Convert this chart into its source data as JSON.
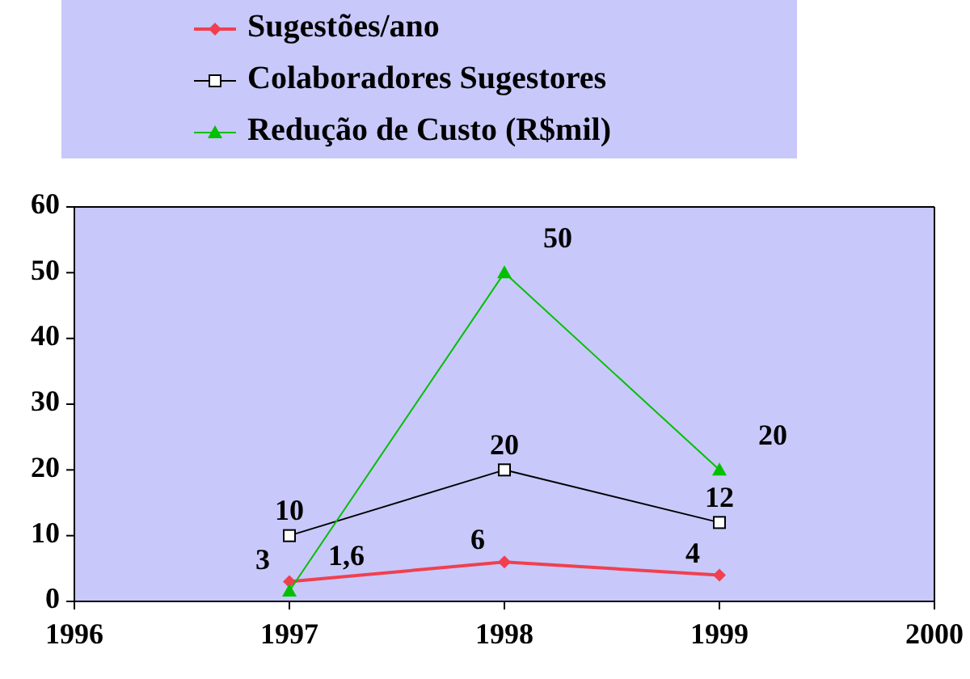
{
  "chart_data": {
    "type": "line",
    "x": [
      1997,
      1998,
      1999
    ],
    "xlim": [
      1996,
      2000
    ],
    "xticks": [
      1996,
      1997,
      1998,
      1999,
      2000
    ],
    "ylim": [
      0,
      60
    ],
    "yticks": [
      0,
      10,
      20,
      30,
      40,
      50,
      60
    ],
    "grid": false,
    "legend": "top",
    "series": [
      {
        "name": "Sugestões/ano",
        "color": "#f04050",
        "marker": "diamond",
        "values": [
          3,
          6,
          4
        ],
        "value_labels": [
          "3",
          "6",
          "4"
        ]
      },
      {
        "name": "Colaboradores Sugestores",
        "color": "#000000",
        "marker": "square",
        "values": [
          10,
          20,
          12
        ],
        "value_labels": [
          "10",
          "20",
          "12"
        ]
      },
      {
        "name": "Redução de Custo (R$mil)",
        "color": "#00c000",
        "marker": "triangle",
        "values": [
          1.6,
          50,
          20
        ],
        "value_labels": [
          "1,6",
          "50",
          "20"
        ]
      }
    ]
  }
}
